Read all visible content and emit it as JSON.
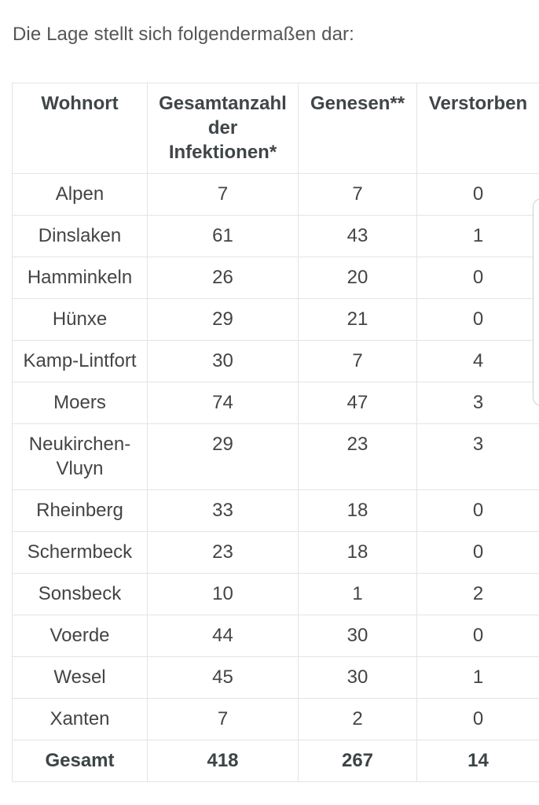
{
  "intro": "Die Lage stellt sich folgendermaßen dar:",
  "headers": [
    "Wohnort",
    "Gesamtanzahl der Infektionen*",
    "Genesen**",
    "Verstorben"
  ],
  "rows": [
    [
      "Alpen",
      "7",
      "7",
      "0"
    ],
    [
      "Dinslaken",
      "61",
      "43",
      "1"
    ],
    [
      "Hamminkeln",
      "26",
      "20",
      "0"
    ],
    [
      "Hünxe",
      "29",
      "21",
      "0"
    ],
    [
      "Kamp-Lintfort",
      "30",
      "7",
      "4"
    ],
    [
      "Moers",
      "74",
      "47",
      "3"
    ],
    [
      "Neukirchen-Vluyn",
      "29",
      "23",
      "3"
    ],
    [
      "Rheinberg",
      "33",
      "18",
      "0"
    ],
    [
      "Schermbeck",
      "23",
      "18",
      "0"
    ],
    [
      "Sonsbeck",
      "10",
      "1",
      "2"
    ],
    [
      "Voerde",
      "44",
      "30",
      "0"
    ],
    [
      "Wesel",
      "45",
      "30",
      "1"
    ],
    [
      "Xanten",
      "7",
      "2",
      "0"
    ]
  ],
  "total": [
    "Gesamt",
    "418",
    "267",
    "14"
  ]
}
